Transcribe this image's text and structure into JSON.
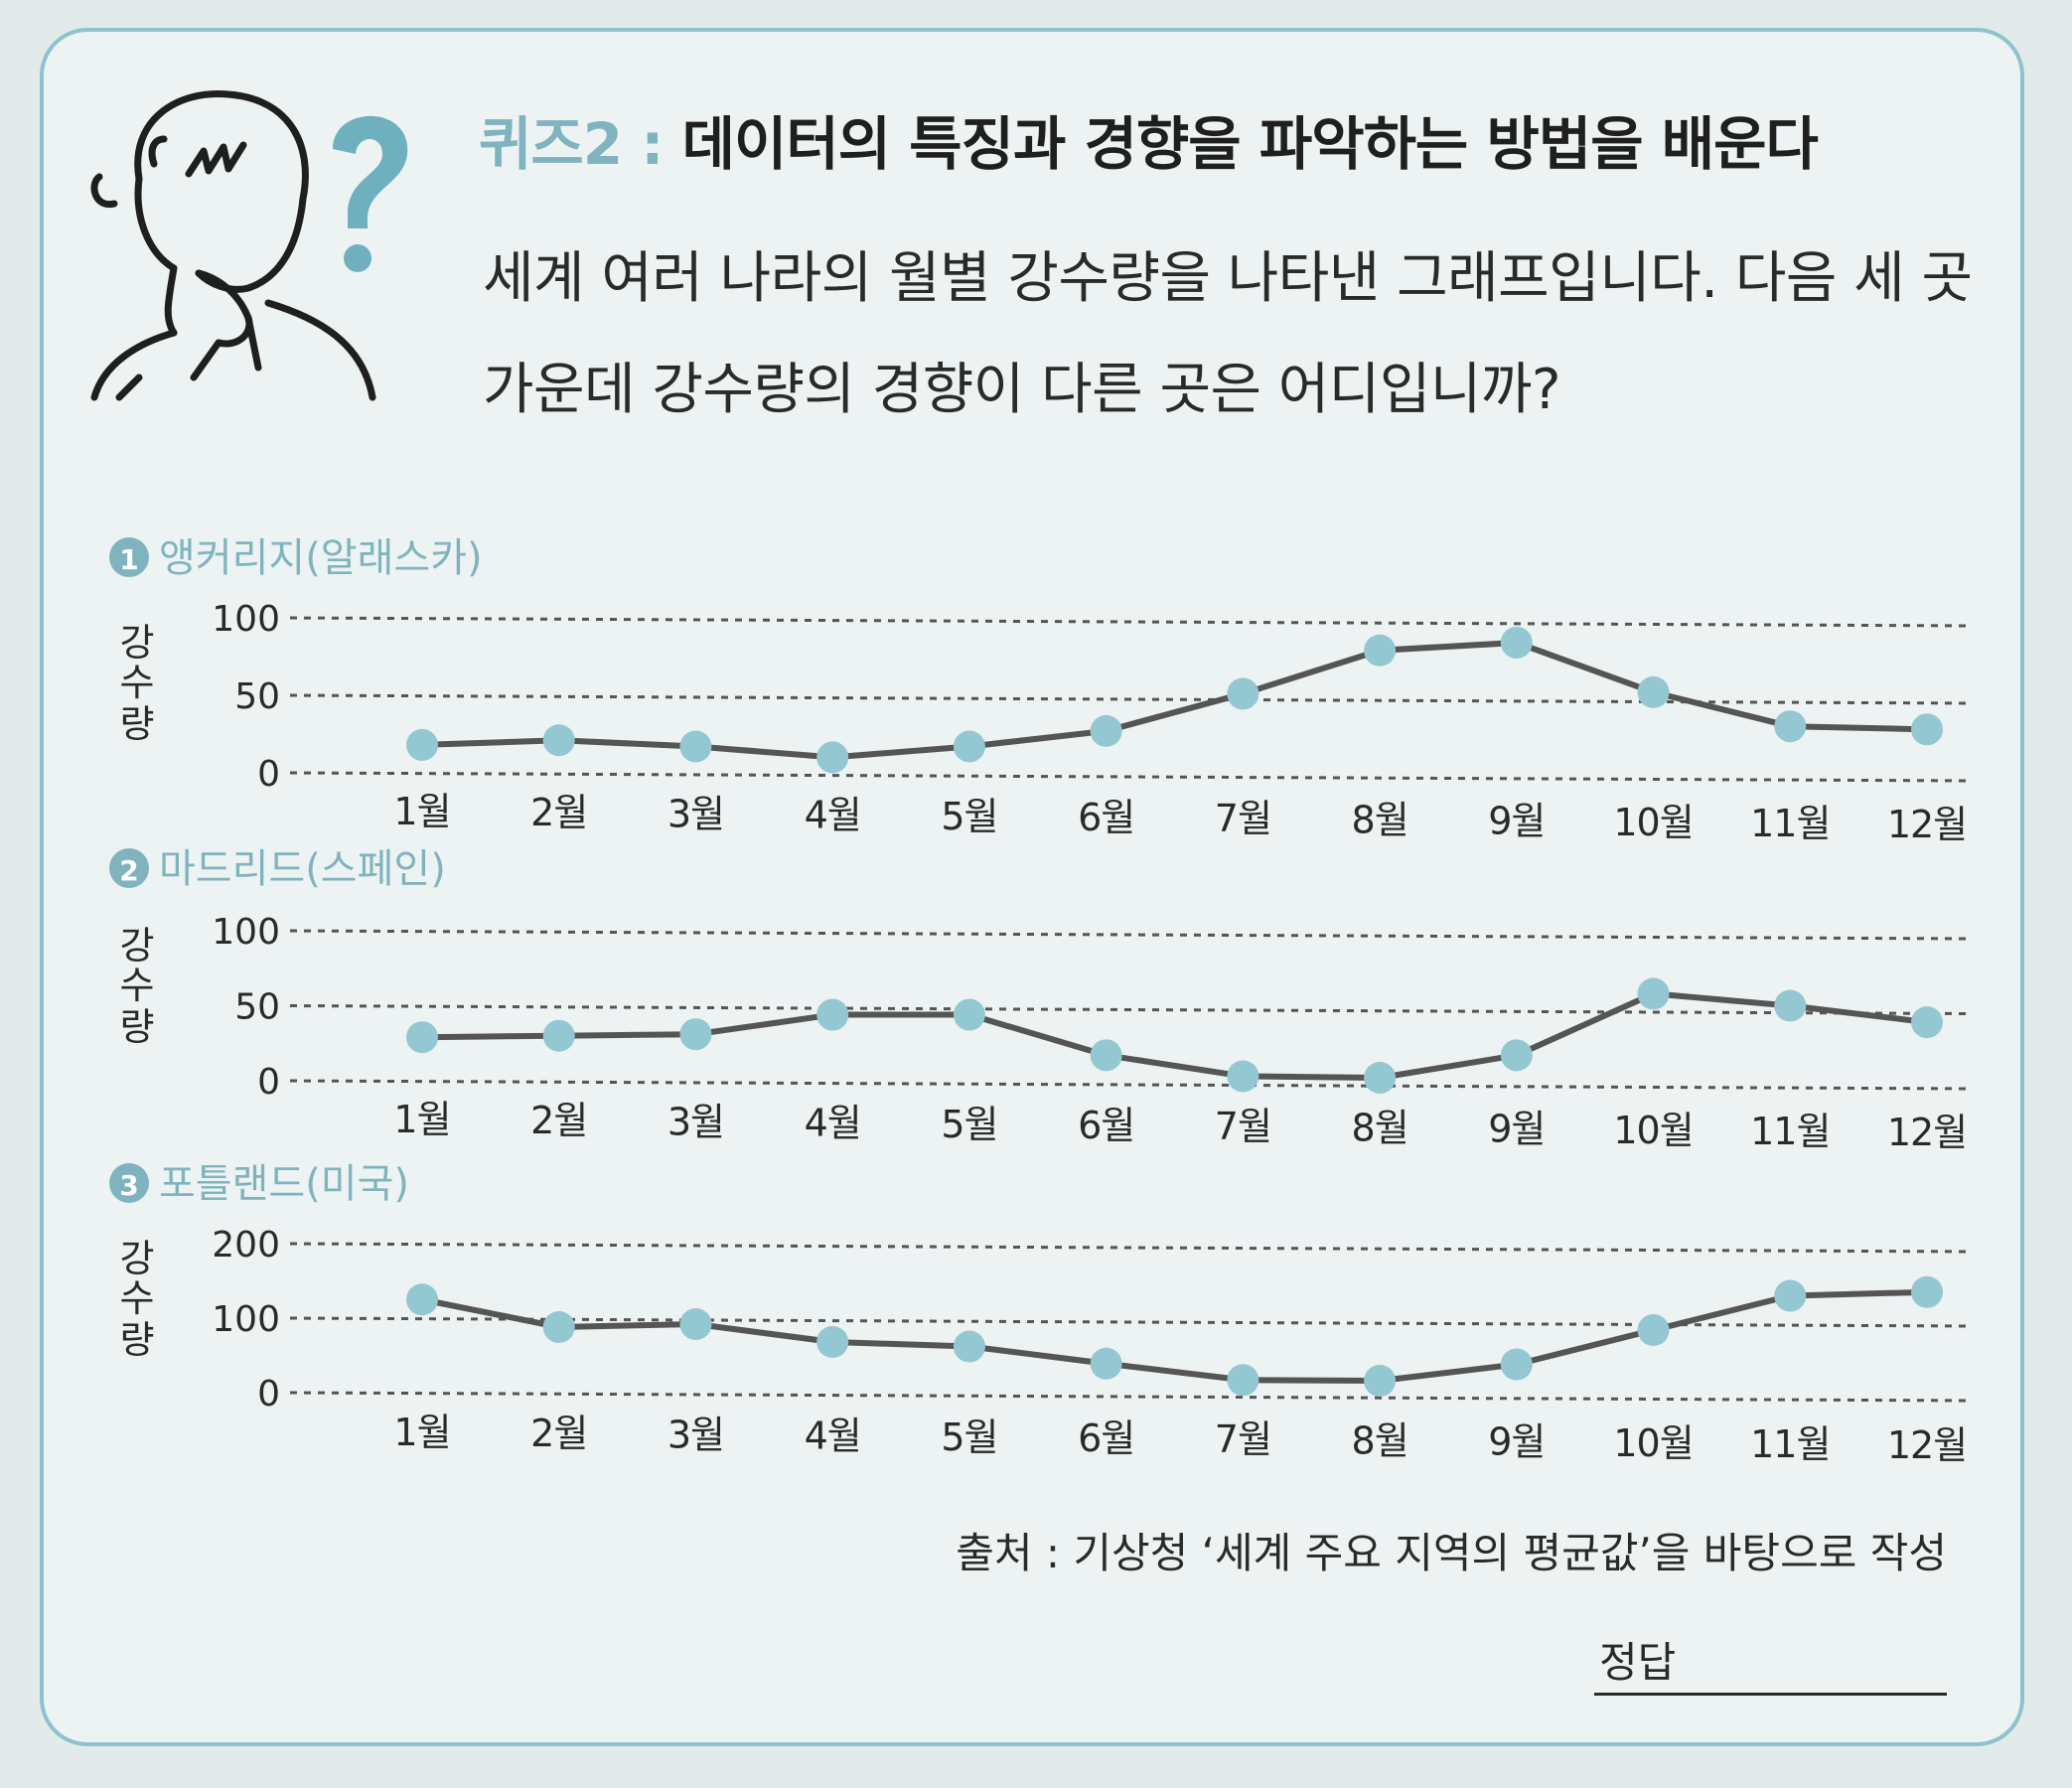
{
  "header": {
    "quiz_label": "퀴즈2 :",
    "quiz_title": "데이터의 특징과 경향을 파악하는 방법을 배운다"
  },
  "question": {
    "text": "세계 여러 나라의 월별 강수량을 나타낸 그래프입니다. 다음 세 곳 가운데 강수량의 경향이 다른 곳은 어디입니까?"
  },
  "colors": {
    "accent": "#7fb4bf",
    "marker": "#93c7d2",
    "line": "#555555",
    "text": "#2a2a2a"
  },
  "chart_data": [
    {
      "type": "line",
      "number": "1",
      "title": "앵커리지(알래스카)",
      "ylabel": "강수량",
      "categories": [
        "1월",
        "2월",
        "3월",
        "4월",
        "5월",
        "6월",
        "7월",
        "8월",
        "9월",
        "10월",
        "11월",
        "12월"
      ],
      "values": [
        18,
        21,
        17,
        10,
        17,
        27,
        51,
        79,
        84,
        52,
        30,
        28
      ],
      "yticks": [
        0,
        50,
        100
      ],
      "ylim": [
        0,
        100
      ]
    },
    {
      "type": "line",
      "number": "2",
      "title": "마드리드(스페인)",
      "ylabel": "강수량",
      "categories": [
        "1월",
        "2월",
        "3월",
        "4월",
        "5월",
        "6월",
        "7월",
        "8월",
        "9월",
        "10월",
        "11월",
        "12월"
      ],
      "values": [
        29,
        30,
        31,
        44,
        44,
        17,
        3,
        2,
        17,
        58,
        50,
        39
      ],
      "yticks": [
        0,
        50,
        100
      ],
      "ylim": [
        0,
        100
      ]
    },
    {
      "type": "line",
      "number": "3",
      "title": "포틀랜드(미국)",
      "ylabel": "강수량",
      "categories": [
        "1월",
        "2월",
        "3월",
        "4월",
        "5월",
        "6월",
        "7월",
        "8월",
        "9월",
        "10월",
        "11월",
        "12월"
      ],
      "values": [
        125,
        88,
        92,
        68,
        62,
        39,
        17,
        16,
        38,
        84,
        130,
        135
      ],
      "yticks": [
        0,
        100,
        200
      ],
      "ylim": [
        0,
        200
      ]
    }
  ],
  "source": "출처 : 기상청 ‘세계 주요 지역의 평균값’을 바탕으로 작성",
  "answer": {
    "label": "정답"
  }
}
